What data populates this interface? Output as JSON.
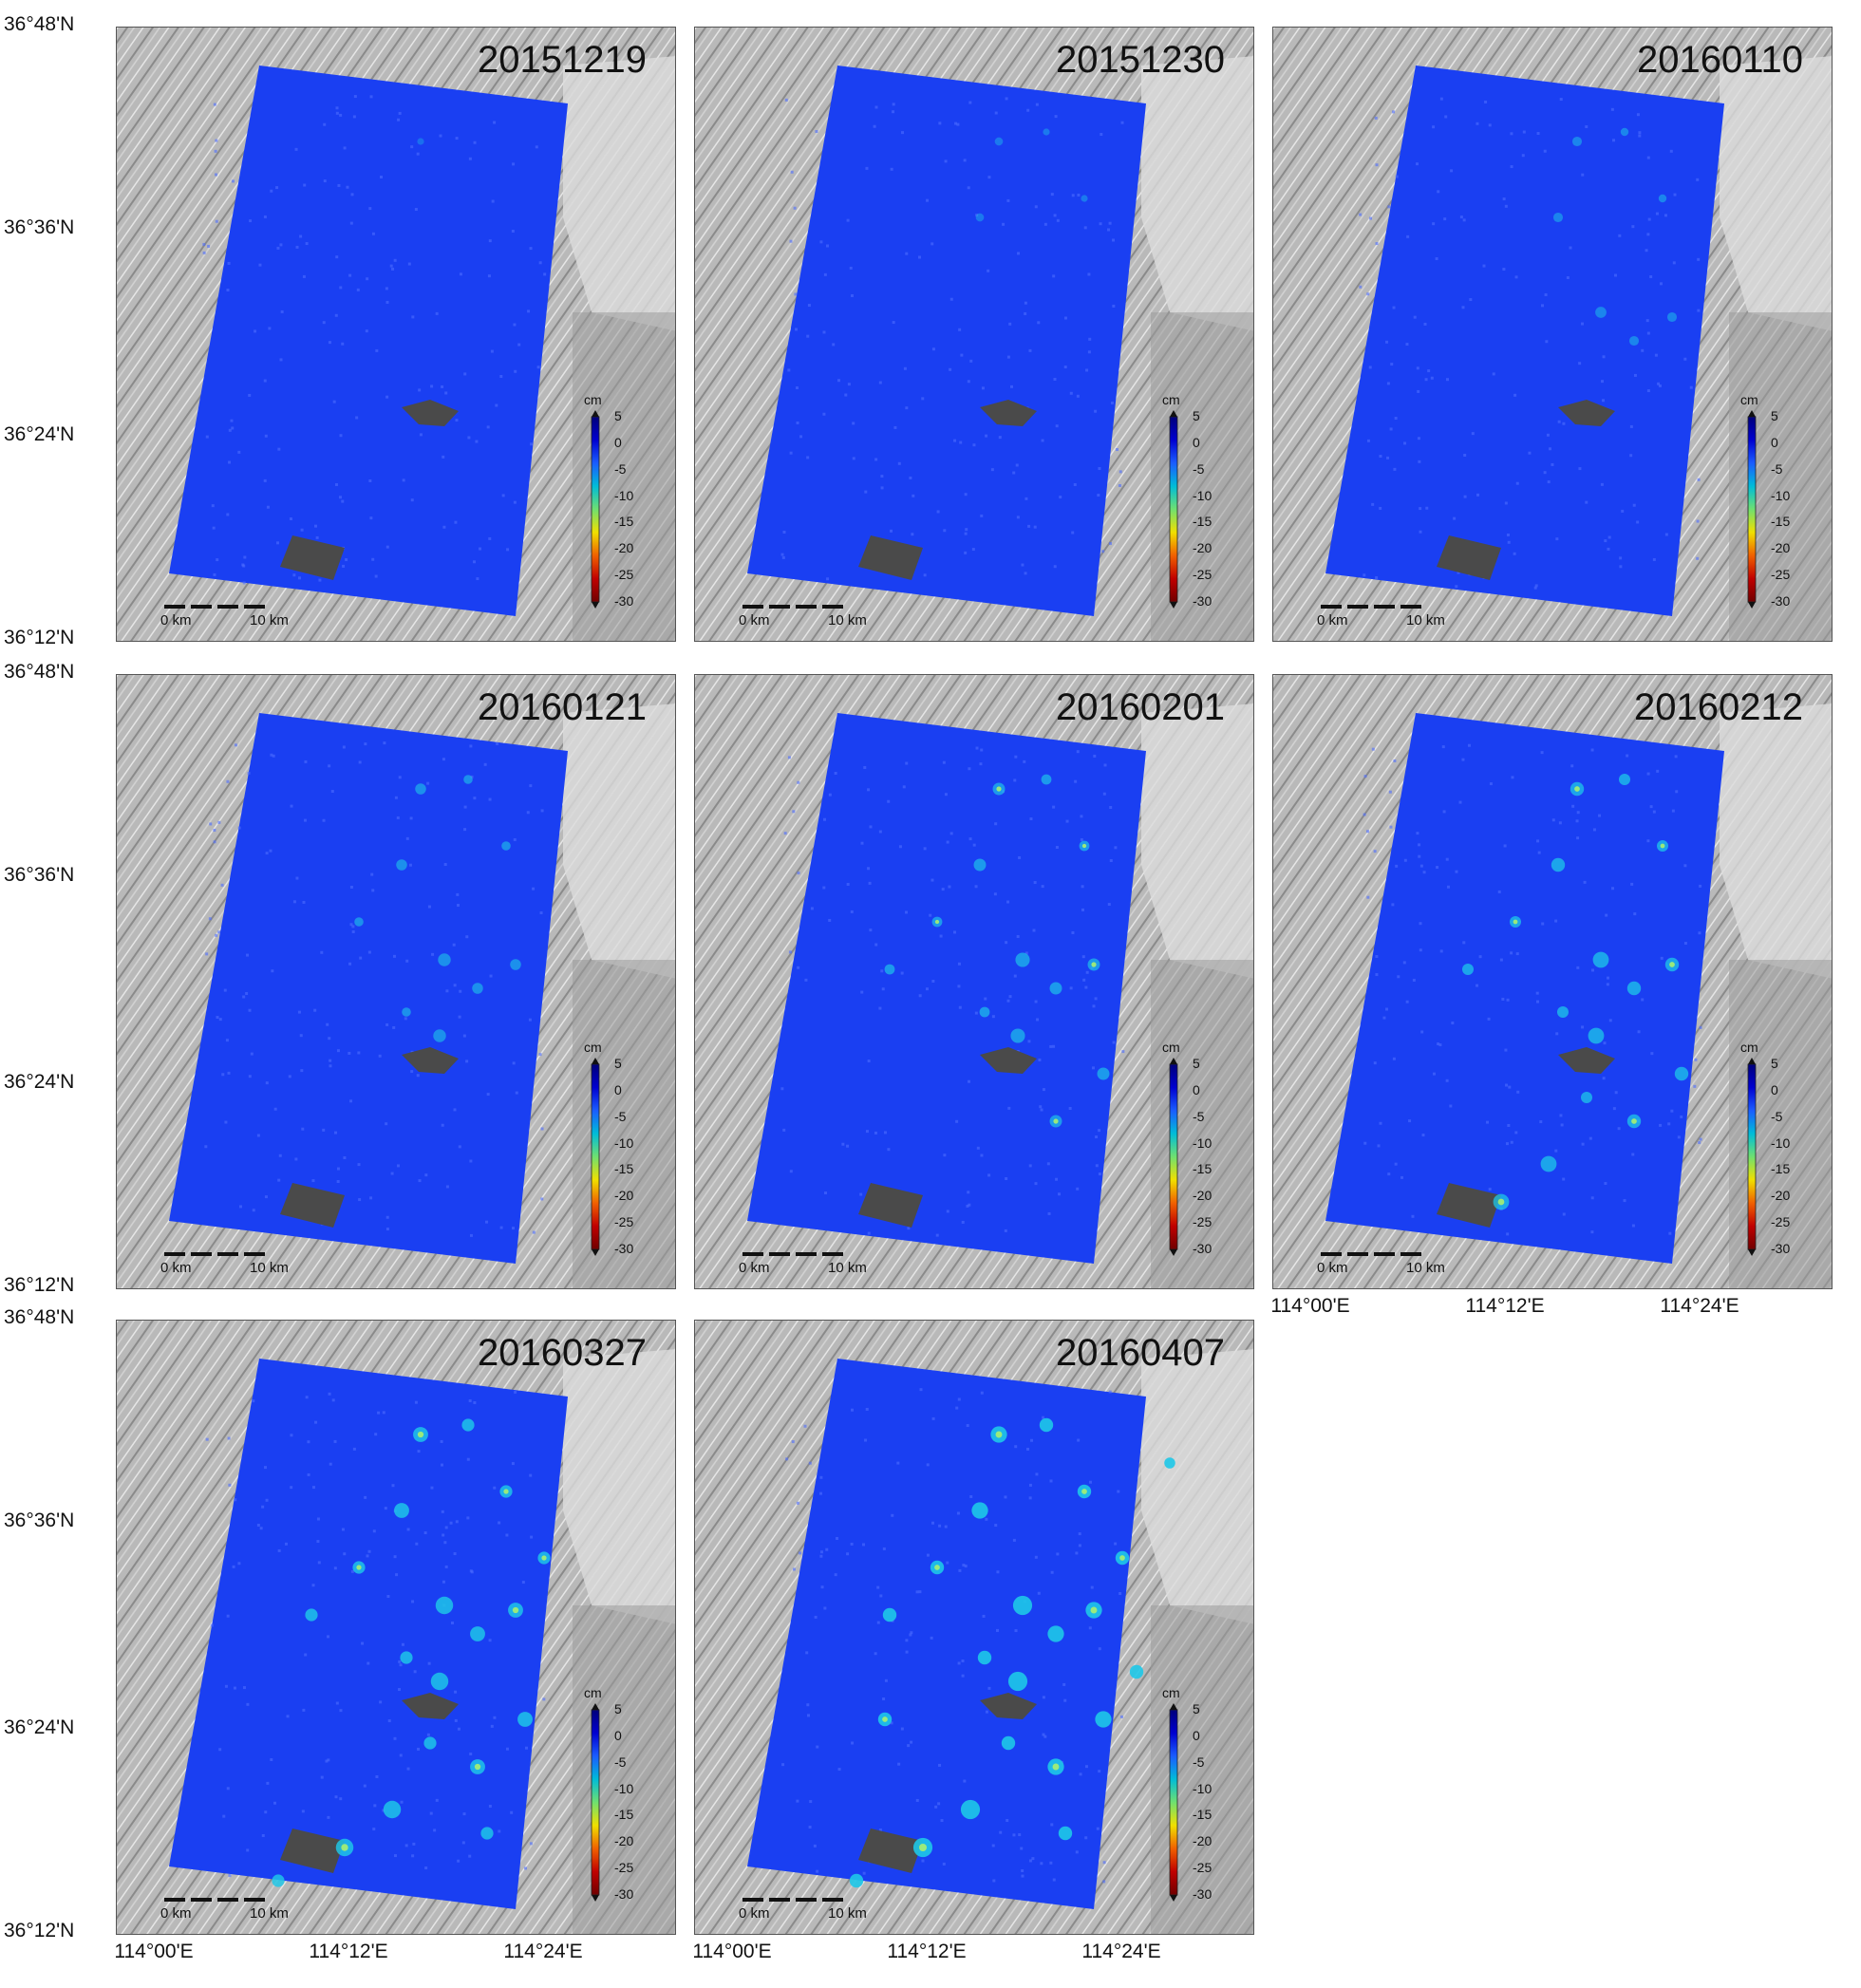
{
  "panels": [
    {
      "date": "20151219",
      "level": 0
    },
    {
      "date": "20151230",
      "level": 1
    },
    {
      "date": "20160110",
      "level": 2
    },
    {
      "date": "20160121",
      "level": 3
    },
    {
      "date": "20160201",
      "level": 4
    },
    {
      "date": "20160212",
      "level": 5
    },
    {
      "date": "20160327",
      "level": 6
    },
    {
      "date": "20160407",
      "level": 7
    }
  ],
  "axes": {
    "lat_labels": [
      "36°48'N",
      "36°36'N",
      "36°24'N",
      "36°12'N"
    ],
    "lon_labels": [
      "114°00'E",
      "114°12'E",
      "114°24'E"
    ]
  },
  "colorbar": {
    "unit": "cm",
    "ticks": [
      "5",
      "0",
      "-5",
      "-10",
      "-15",
      "-20",
      "-25",
      "-30"
    ],
    "colors": [
      "#00007a",
      "#0000d0",
      "#1a5cff",
      "#00bcd8",
      "#6fe070",
      "#f0e000",
      "#f06000",
      "#c00000",
      "#700000"
    ]
  },
  "scalebar": {
    "start": "0 km",
    "end": "10 km"
  },
  "colors": {
    "deformation_base": "#1a3ff2",
    "mask": "#4a4a4a"
  }
}
